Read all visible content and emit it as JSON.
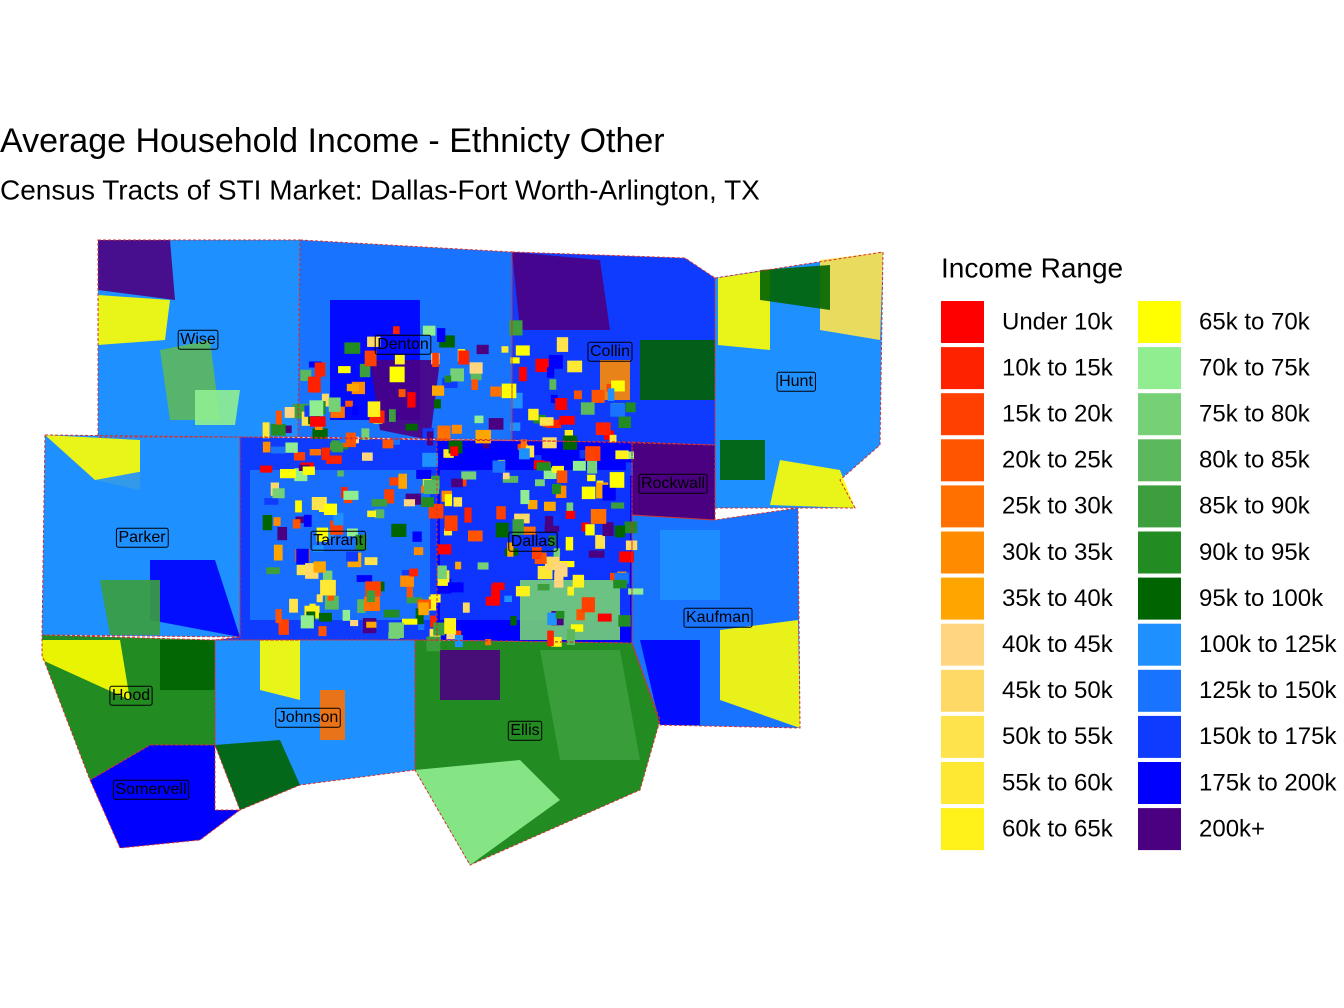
{
  "title": "Average Household Income - Ethnicty Other",
  "subtitle": "Census Tracts of STI Market: Dallas-Fort Worth-Arlington, TX",
  "legend": {
    "title": "Income Range",
    "items": [
      {
        "label": "Under 10k",
        "color": "#FF0000"
      },
      {
        "label": "10k to 15k",
        "color": "#FF2200"
      },
      {
        "label": "15k to 20k",
        "color": "#FF4000"
      },
      {
        "label": "20k to 25k",
        "color": "#FF5500"
      },
      {
        "label": "25k to 30k",
        "color": "#FF7000"
      },
      {
        "label": "30k to 35k",
        "color": "#FF8C00"
      },
      {
        "label": "35k to 40k",
        "color": "#FFA500"
      },
      {
        "label": "40k to 45k",
        "color": "#FFD580"
      },
      {
        "label": "45k to 50k",
        "color": "#FFD966"
      },
      {
        "label": "50k to 55k",
        "color": "#FFE34D"
      },
      {
        "label": "55k to 60k",
        "color": "#FFE833"
      },
      {
        "label": "60k to 65k",
        "color": "#FFF21A"
      },
      {
        "label": "65k to 70k",
        "color": "#FFFF00"
      },
      {
        "label": "70k to 75k",
        "color": "#90EE90"
      },
      {
        "label": "75k to 80k",
        "color": "#76D176"
      },
      {
        "label": "80k to 85k",
        "color": "#5CB85C"
      },
      {
        "label": "85k to 90k",
        "color": "#3C9E3C"
      },
      {
        "label": "90k to 95k",
        "color": "#228B22"
      },
      {
        "label": "95k to 100k",
        "color": "#006400"
      },
      {
        "label": "100k to 125k",
        "color": "#1E90FF"
      },
      {
        "label": "125k to 150k",
        "color": "#1874FF"
      },
      {
        "label": "150k to 175k",
        "color": "#0F3BFF"
      },
      {
        "label": "175k to 200k",
        "color": "#0000FF"
      },
      {
        "label": "200k+",
        "color": "#4B0082"
      }
    ]
  },
  "counties": [
    {
      "name": "Wise"
    },
    {
      "name": "Denton"
    },
    {
      "name": "Collin"
    },
    {
      "name": "Hunt"
    },
    {
      "name": "Rockwall"
    },
    {
      "name": "Parker"
    },
    {
      "name": "Tarrant"
    },
    {
      "name": "Dallas"
    },
    {
      "name": "Kaufman"
    },
    {
      "name": "Hood"
    },
    {
      "name": "Johnson"
    },
    {
      "name": "Ellis"
    },
    {
      "name": "Somervell"
    }
  ]
}
